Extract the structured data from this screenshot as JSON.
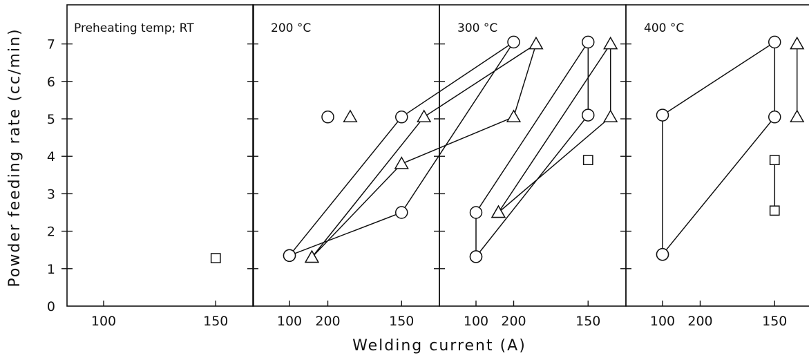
{
  "chart_data": {
    "type": "line",
    "xlabel": "Welding current (A)",
    "ylabel": "Powder feeding rate (cc/min)",
    "xlim": [
      65,
      230
    ],
    "ylim": [
      0,
      8
    ],
    "x_ticks": [
      100,
      150,
      200
    ],
    "y_ticks": [
      0,
      1,
      2,
      3,
      4,
      5,
      6,
      7
    ],
    "grid": false,
    "markers": [
      "circle",
      "triangle",
      "square"
    ],
    "panels": [
      {
        "title": "Preheating temp; RT",
        "series": [
          {
            "marker": "circle",
            "points": [
              [
                200,
                5.05
              ]
            ]
          },
          {
            "marker": "triangle",
            "points": [
              [
                210,
                5.05
              ]
            ]
          },
          {
            "marker": "square",
            "points": [
              [
                150,
                1.28
              ]
            ]
          }
        ]
      },
      {
        "title": "200 °C",
        "series": [
          {
            "marker": "circle",
            "points": [
              [
                100,
                1.35
              ],
              [
                150,
                5.05
              ],
              [
                200,
                7.05
              ],
              [
                150,
                2.5
              ],
              [
                100,
                1.35
              ]
            ]
          },
          {
            "marker": "triangle",
            "points": [
              [
                110,
                1.3
              ],
              [
                160,
                5.05
              ],
              [
                210,
                7.0
              ],
              [
                200,
                5.05
              ],
              [
                150,
                3.8
              ],
              [
                110,
                1.3
              ]
            ]
          }
        ]
      },
      {
        "title": "300 °C",
        "series": [
          {
            "marker": "circle",
            "points": [
              [
                100,
                1.32
              ],
              [
                150,
                5.1
              ],
              [
                150,
                7.05
              ],
              [
                100,
                2.5
              ],
              [
                100,
                1.32
              ]
            ]
          },
          {
            "marker": "triangle",
            "points": [
              [
                110,
                2.5
              ],
              [
                160,
                5.05
              ],
              [
                160,
                7.0
              ],
              [
                110,
                2.5
              ]
            ]
          },
          {
            "marker": "square",
            "points": [
              [
                150,
                3.9
              ]
            ]
          }
        ]
      },
      {
        "title": "400 °C",
        "series": [
          {
            "marker": "circle",
            "points": [
              [
                100,
                1.38
              ],
              [
                100,
                5.1
              ],
              [
                150,
                7.05
              ],
              [
                150,
                5.05
              ],
              [
                100,
                1.38
              ]
            ]
          },
          {
            "marker": "triangle",
            "points": [
              [
                160,
                5.05
              ],
              [
                160,
                7.0
              ]
            ]
          },
          {
            "marker": "square",
            "points": [
              [
                150,
                3.9
              ],
              [
                150,
                2.55
              ]
            ]
          }
        ]
      }
    ]
  }
}
